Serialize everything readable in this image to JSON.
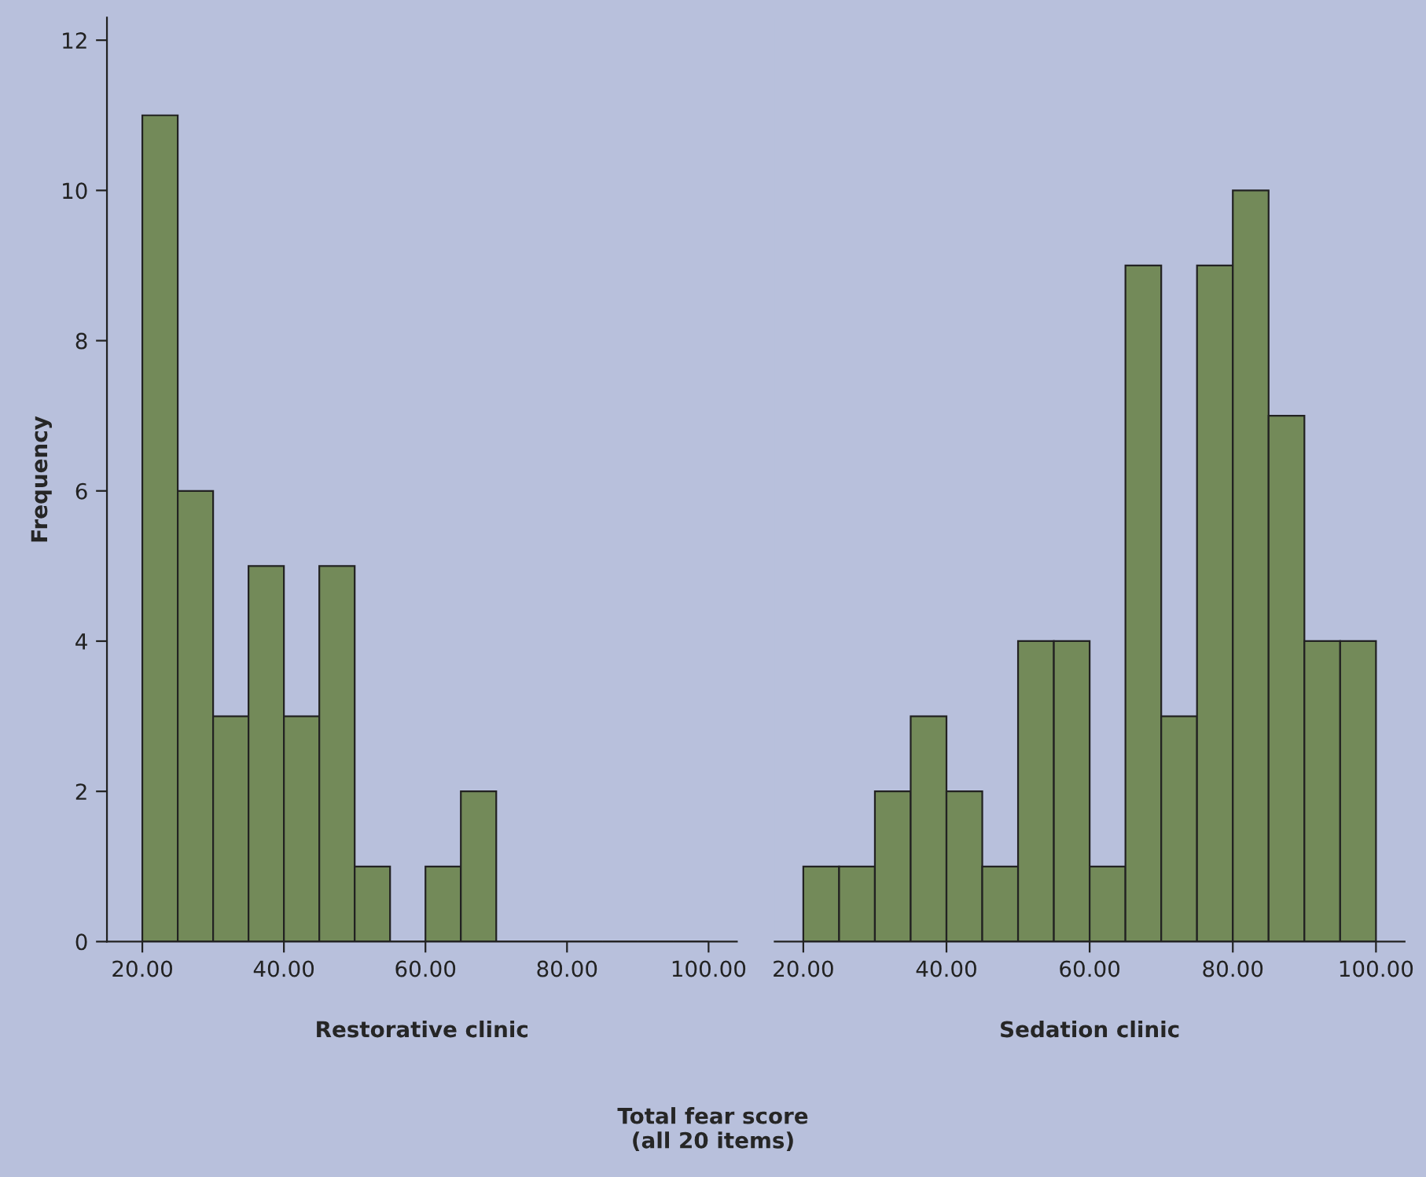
{
  "chart_data": [
    {
      "type": "histogram",
      "xlabel": "Restorative clinic",
      "ylabel": "Frequency",
      "bins": [
        20,
        25,
        30,
        35,
        40,
        45,
        50,
        55,
        60,
        65,
        70,
        75,
        80,
        85,
        90,
        95,
        100
      ],
      "values": [
        11,
        6,
        3,
        5,
        3,
        5,
        1,
        0,
        1,
        2,
        0,
        0,
        0,
        0,
        0,
        0
      ],
      "color": "#738a59",
      "xlim": [
        15,
        104
      ],
      "xticks": [
        {
          "value": 20,
          "label": "20.00"
        },
        {
          "value": 40,
          "label": "40.00"
        },
        {
          "value": 60,
          "label": "60.00"
        },
        {
          "value": 80,
          "label": "80.00"
        },
        {
          "value": 100,
          "label": "100.00"
        }
      ],
      "ylim": [
        0,
        12.3
      ],
      "yticks": [
        0,
        2,
        4,
        6,
        8,
        10,
        12
      ],
      "annotations": [
        "Total fear score\n(all 20 items)"
      ]
    },
    {
      "type": "histogram",
      "xlabel": "Sedation clinic",
      "bins": [
        20,
        25,
        30,
        35,
        40,
        45,
        50,
        55,
        60,
        65,
        70,
        75,
        80,
        85,
        90,
        95,
        100
      ],
      "values": [
        1,
        1,
        2,
        3,
        2,
        1,
        4,
        4,
        1,
        9,
        3,
        9,
        10,
        7,
        4,
        4
      ],
      "color": "#738a59",
      "xlim": [
        16,
        104
      ],
      "xticks": [
        {
          "value": 20,
          "label": "20.00"
        },
        {
          "value": 40,
          "label": "40.00"
        },
        {
          "value": 60,
          "label": "60.00"
        },
        {
          "value": 80,
          "label": "80.00"
        },
        {
          "value": 100,
          "label": "100.00"
        }
      ],
      "yticks": [
        0,
        2,
        4,
        6,
        8,
        10,
        12
      ],
      "tick_labels": "x"
    }
  ]
}
